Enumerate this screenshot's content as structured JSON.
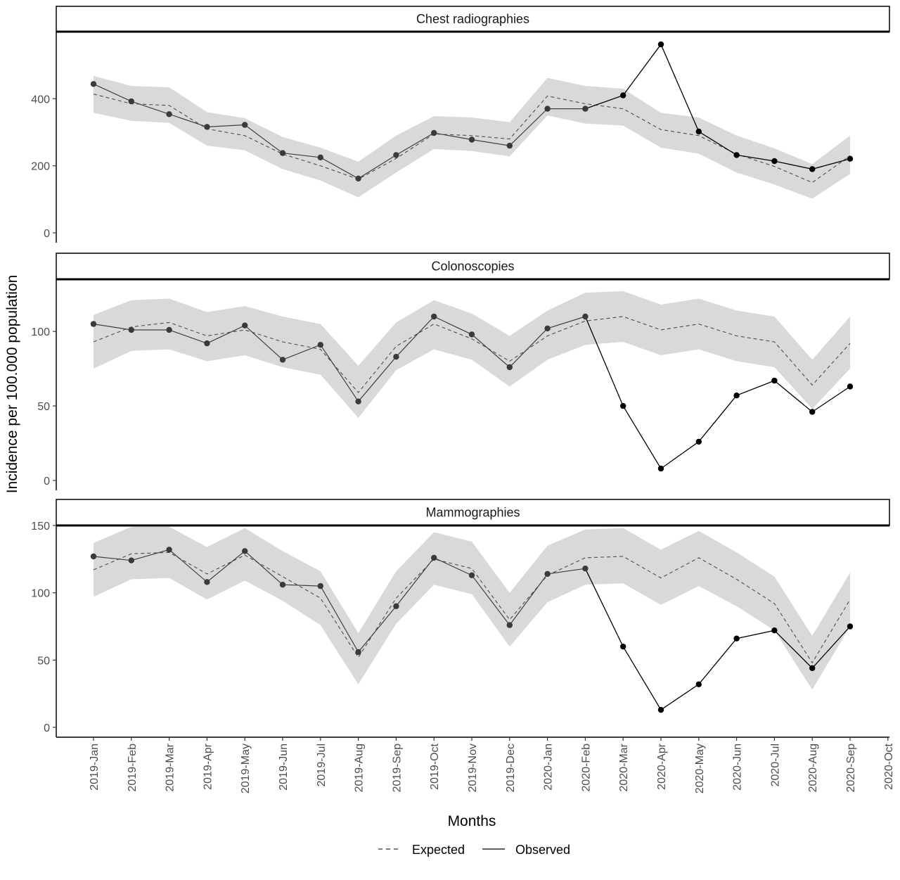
{
  "chart_data": {
    "type": "line",
    "xlabel": "Months",
    "ylabel": "Incidence per 100.000 population",
    "x_ticks": [
      "2019-Jan",
      "2019-Feb",
      "2019-Mar",
      "2019-Apr",
      "2019-May",
      "2019-Jun",
      "2019-Jul",
      "2019-Aug",
      "2019-Sep",
      "2019-Oct",
      "2019-Nov",
      "2019-Dec",
      "2020-Jan",
      "2020-Feb",
      "2020-Mar",
      "2020-Apr",
      "2020-May",
      "2020-Jun",
      "2020-Jul",
      "2020-Aug",
      "2020-Sep",
      "2020-Oct"
    ],
    "legend": {
      "position": "bottom",
      "entries": [
        "Expected",
        "Observed"
      ]
    },
    "grid": false,
    "panels": [
      {
        "title": "Chest radiographies",
        "ylim": [
          0,
          600
        ],
        "yticks": [
          0,
          200,
          400
        ],
        "observed": [
          444,
          392,
          354,
          316,
          322,
          238,
          225,
          162,
          232,
          298,
          278,
          260,
          370,
          370,
          410,
          562,
          302,
          232,
          214,
          190,
          221
        ],
        "expected": [
          414,
          385,
          380,
          310,
          290,
          235,
          200,
          160,
          222,
          295,
          290,
          280,
          408,
          385,
          370,
          308,
          290,
          235,
          198,
          150,
          230
        ],
        "lower": [
          358,
          334,
          328,
          260,
          246,
          190,
          156,
          106,
          180,
          250,
          244,
          228,
          350,
          326,
          320,
          254,
          236,
          180,
          144,
          102,
          176
        ],
        "upper": [
          468,
          438,
          434,
          360,
          342,
          286,
          254,
          212,
          290,
          348,
          344,
          330,
          462,
          438,
          430,
          358,
          344,
          290,
          252,
          205,
          290
        ]
      },
      {
        "title": "Colonoscopies",
        "ylim": [
          0,
          135
        ],
        "yticks": [
          0,
          50,
          100
        ],
        "observed": [
          105,
          101,
          101,
          92,
          104,
          81,
          91,
          53,
          83,
          110,
          98,
          76,
          102,
          110,
          50,
          8,
          26,
          57,
          67,
          46,
          63
        ],
        "expected": [
          93,
          103,
          106,
          97,
          101,
          93,
          88,
          59,
          90,
          105,
          95,
          80,
          97,
          107,
          110,
          101,
          105,
          97,
          93,
          64,
          92
        ],
        "lower": [
          75,
          87,
          88,
          80,
          84,
          76,
          71,
          42,
          74,
          88,
          81,
          63,
          81,
          91,
          93,
          84,
          88,
          80,
          76,
          48,
          75
        ],
        "upper": [
          111,
          121,
          122,
          113,
          117,
          110,
          105,
          77,
          106,
          121,
          112,
          97,
          114,
          126,
          127,
          118,
          122,
          114,
          110,
          81,
          110
        ]
      },
      {
        "title": "Mammographies",
        "ylim": [
          0,
          150
        ],
        "yticks": [
          0,
          50,
          100,
          150
        ],
        "observed": [
          127,
          124,
          132,
          108,
          131,
          106,
          105,
          56,
          90,
          126,
          113,
          76,
          114,
          118,
          60,
          13,
          32,
          66,
          72,
          44,
          75
        ],
        "expected": [
          117,
          129,
          130,
          114,
          128,
          112,
          96,
          52,
          96,
          125,
          118,
          80,
          113,
          126,
          127,
          111,
          126,
          110,
          92,
          48,
          95
        ],
        "lower": [
          97,
          110,
          111,
          95,
          109,
          94,
          76,
          32,
          77,
          106,
          99,
          60,
          93,
          106,
          107,
          91,
          105,
          90,
          72,
          28,
          75
        ],
        "upper": [
          137,
          149,
          149,
          134,
          148,
          131,
          116,
          70,
          116,
          145,
          138,
          100,
          135,
          147,
          148,
          132,
          146,
          130,
          112,
          68,
          115
        ]
      }
    ]
  }
}
